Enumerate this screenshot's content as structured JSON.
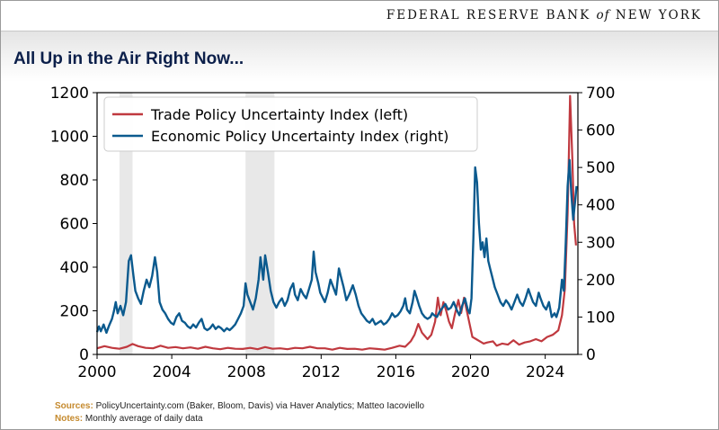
{
  "header": {
    "brand_main": "FEDERAL RESERVE BANK",
    "brand_of": "of",
    "brand_end": "NEW YORK",
    "title": "All Up in the Air Right Now..."
  },
  "footer": {
    "sources_label": "Sources:",
    "sources_text": "PolicyUncertainty.com (Baker, Bloom, Davis) via Haver Analytics; Matteo Iacoviello",
    "notes_label": "Notes:",
    "notes_text": "Monthly average of daily data"
  },
  "colors": {
    "trade": "#c0393f",
    "economic": "#0b5a8e",
    "recession": "#e8e8e8"
  },
  "chart_data": {
    "type": "line",
    "title": "All Up in the Air Right Now...",
    "x_ticks": [
      "2000",
      "2004",
      "2008",
      "2012",
      "2016",
      "2020",
      "2024"
    ],
    "x_tick_values": [
      2000,
      2004,
      2008,
      2012,
      2016,
      2020,
      2024
    ],
    "xlim": [
      2000,
      2025.75
    ],
    "y_left_ticks": [
      "0",
      "200",
      "400",
      "600",
      "800",
      "1000",
      "1200"
    ],
    "y_left_values": [
      0,
      200,
      400,
      600,
      800,
      1000,
      1200
    ],
    "ylim_left": [
      0,
      1200
    ],
    "y_right_ticks": [
      "0",
      "100",
      "200",
      "300",
      "400",
      "500",
      "600",
      "700"
    ],
    "y_right_values": [
      0,
      100,
      200,
      300,
      400,
      500,
      600,
      700
    ],
    "ylim_right": [
      0,
      700
    ],
    "legend_position": "top-left",
    "shaded_periods": [
      [
        2001.2,
        2001.9
      ],
      [
        2007.95,
        2009.5
      ]
    ],
    "series": [
      {
        "name": "Trade Policy Uncertainty Index (left)",
        "axis": "left",
        "color": "#c0393f",
        "points": [
          [
            2000.0,
            28
          ],
          [
            2000.4,
            38
          ],
          [
            2000.8,
            30
          ],
          [
            2001.2,
            26
          ],
          [
            2001.6,
            35
          ],
          [
            2001.9,
            48
          ],
          [
            2002.2,
            38
          ],
          [
            2002.6,
            30
          ],
          [
            2003.0,
            28
          ],
          [
            2003.4,
            40
          ],
          [
            2003.8,
            30
          ],
          [
            2004.2,
            34
          ],
          [
            2004.6,
            28
          ],
          [
            2005.0,
            32
          ],
          [
            2005.4,
            26
          ],
          [
            2005.8,
            35
          ],
          [
            2006.2,
            28
          ],
          [
            2006.6,
            24
          ],
          [
            2007.0,
            30
          ],
          [
            2007.4,
            26
          ],
          [
            2007.8,
            25
          ],
          [
            2008.2,
            30
          ],
          [
            2008.6,
            24
          ],
          [
            2009.0,
            34
          ],
          [
            2009.4,
            26
          ],
          [
            2009.8,
            28
          ],
          [
            2010.2,
            24
          ],
          [
            2010.6,
            30
          ],
          [
            2011.0,
            28
          ],
          [
            2011.4,
            35
          ],
          [
            2011.8,
            28
          ],
          [
            2012.2,
            28
          ],
          [
            2012.6,
            22
          ],
          [
            2013.0,
            30
          ],
          [
            2013.4,
            25
          ],
          [
            2013.8,
            26
          ],
          [
            2014.2,
            22
          ],
          [
            2014.6,
            28
          ],
          [
            2015.0,
            25
          ],
          [
            2015.4,
            22
          ],
          [
            2015.8,
            30
          ],
          [
            2016.2,
            40
          ],
          [
            2016.5,
            35
          ],
          [
            2016.8,
            60
          ],
          [
            2017.0,
            90
          ],
          [
            2017.2,
            140
          ],
          [
            2017.4,
            100
          ],
          [
            2017.7,
            70
          ],
          [
            2017.9,
            90
          ],
          [
            2018.1,
            150
          ],
          [
            2018.25,
            260
          ],
          [
            2018.4,
            180
          ],
          [
            2018.55,
            240
          ],
          [
            2018.7,
            200
          ],
          [
            2018.85,
            150
          ],
          [
            2019.0,
            120
          ],
          [
            2019.15,
            180
          ],
          [
            2019.35,
            250
          ],
          [
            2019.5,
            190
          ],
          [
            2019.65,
            260
          ],
          [
            2019.8,
            200
          ],
          [
            2019.95,
            140
          ],
          [
            2020.1,
            80
          ],
          [
            2020.3,
            70
          ],
          [
            2020.5,
            60
          ],
          [
            2020.7,
            50
          ],
          [
            2020.9,
            55
          ],
          [
            2021.2,
            60
          ],
          [
            2021.4,
            40
          ],
          [
            2021.7,
            50
          ],
          [
            2022.0,
            45
          ],
          [
            2022.3,
            65
          ],
          [
            2022.6,
            45
          ],
          [
            2022.9,
            55
          ],
          [
            2023.2,
            60
          ],
          [
            2023.5,
            70
          ],
          [
            2023.8,
            60
          ],
          [
            2024.1,
            80
          ],
          [
            2024.4,
            90
          ],
          [
            2024.7,
            110
          ],
          [
            2024.9,
            180
          ],
          [
            2025.05,
            300
          ],
          [
            2025.2,
            650
          ],
          [
            2025.33,
            1185
          ],
          [
            2025.45,
            900
          ],
          [
            2025.55,
            600
          ],
          [
            2025.65,
            500
          ]
        ]
      },
      {
        "name": "Economic Policy Uncertainty Index (right)",
        "axis": "right",
        "color": "#0b5a8e",
        "points": [
          [
            2000.0,
            60
          ],
          [
            2000.1,
            75
          ],
          [
            2000.2,
            62
          ],
          [
            2000.35,
            80
          ],
          [
            2000.5,
            58
          ],
          [
            2000.65,
            78
          ],
          [
            2000.8,
            95
          ],
          [
            2000.9,
            115
          ],
          [
            2001.0,
            140
          ],
          [
            2001.1,
            110
          ],
          [
            2001.25,
            130
          ],
          [
            2001.4,
            105
          ],
          [
            2001.55,
            140
          ],
          [
            2001.7,
            250
          ],
          [
            2001.82,
            265
          ],
          [
            2001.95,
            210
          ],
          [
            2002.05,
            170
          ],
          [
            2002.2,
            150
          ],
          [
            2002.35,
            135
          ],
          [
            2002.5,
            170
          ],
          [
            2002.65,
            200
          ],
          [
            2002.8,
            180
          ],
          [
            2002.95,
            210
          ],
          [
            2003.1,
            260
          ],
          [
            2003.22,
            220
          ],
          [
            2003.35,
            140
          ],
          [
            2003.5,
            120
          ],
          [
            2003.65,
            110
          ],
          [
            2003.8,
            95
          ],
          [
            2003.95,
            85
          ],
          [
            2004.1,
            80
          ],
          [
            2004.25,
            100
          ],
          [
            2004.4,
            110
          ],
          [
            2004.55,
            90
          ],
          [
            2004.7,
            85
          ],
          [
            2004.85,
            75
          ],
          [
            2005.0,
            70
          ],
          [
            2005.15,
            80
          ],
          [
            2005.3,
            72
          ],
          [
            2005.45,
            85
          ],
          [
            2005.6,
            95
          ],
          [
            2005.75,
            70
          ],
          [
            2005.9,
            65
          ],
          [
            2006.05,
            70
          ],
          [
            2006.2,
            80
          ],
          [
            2006.35,
            68
          ],
          [
            2006.5,
            75
          ],
          [
            2006.65,
            70
          ],
          [
            2006.8,
            62
          ],
          [
            2006.95,
            70
          ],
          [
            2007.1,
            65
          ],
          [
            2007.25,
            72
          ],
          [
            2007.4,
            80
          ],
          [
            2007.55,
            95
          ],
          [
            2007.7,
            110
          ],
          [
            2007.85,
            130
          ],
          [
            2007.95,
            190
          ],
          [
            2008.05,
            160
          ],
          [
            2008.2,
            140
          ],
          [
            2008.35,
            120
          ],
          [
            2008.5,
            150
          ],
          [
            2008.65,
            200
          ],
          [
            2008.75,
            260
          ],
          [
            2008.9,
            200
          ],
          [
            2009.0,
            265
          ],
          [
            2009.15,
            220
          ],
          [
            2009.3,
            170
          ],
          [
            2009.45,
            140
          ],
          [
            2009.6,
            125
          ],
          [
            2009.75,
            140
          ],
          [
            2009.9,
            150
          ],
          [
            2010.05,
            130
          ],
          [
            2010.2,
            145
          ],
          [
            2010.35,
            175
          ],
          [
            2010.5,
            190
          ],
          [
            2010.6,
            160
          ],
          [
            2010.75,
            145
          ],
          [
            2010.9,
            175
          ],
          [
            2011.05,
            160
          ],
          [
            2011.2,
            150
          ],
          [
            2011.35,
            175
          ],
          [
            2011.5,
            200
          ],
          [
            2011.6,
            275
          ],
          [
            2011.7,
            220
          ],
          [
            2011.85,
            190
          ],
          [
            2011.95,
            165
          ],
          [
            2012.1,
            150
          ],
          [
            2012.2,
            140
          ],
          [
            2012.35,
            165
          ],
          [
            2012.5,
            200
          ],
          [
            2012.65,
            180
          ],
          [
            2012.8,
            160
          ],
          [
            2012.95,
            230
          ],
          [
            2013.05,
            210
          ],
          [
            2013.2,
            180
          ],
          [
            2013.35,
            145
          ],
          [
            2013.5,
            160
          ],
          [
            2013.7,
            185
          ],
          [
            2013.85,
            160
          ],
          [
            2014.0,
            130
          ],
          [
            2014.15,
            110
          ],
          [
            2014.3,
            100
          ],
          [
            2014.45,
            90
          ],
          [
            2014.6,
            85
          ],
          [
            2014.75,
            95
          ],
          [
            2014.9,
            80
          ],
          [
            2015.05,
            85
          ],
          [
            2015.2,
            90
          ],
          [
            2015.35,
            80
          ],
          [
            2015.5,
            85
          ],
          [
            2015.65,
            95
          ],
          [
            2015.8,
            110
          ],
          [
            2015.95,
            100
          ],
          [
            2016.1,
            105
          ],
          [
            2016.25,
            115
          ],
          [
            2016.4,
            130
          ],
          [
            2016.5,
            150
          ],
          [
            2016.6,
            120
          ],
          [
            2016.75,
            110
          ],
          [
            2016.9,
            140
          ],
          [
            2017.0,
            170
          ],
          [
            2017.1,
            155
          ],
          [
            2017.25,
            130
          ],
          [
            2017.4,
            110
          ],
          [
            2017.55,
            100
          ],
          [
            2017.7,
            95
          ],
          [
            2017.85,
            100
          ],
          [
            2017.95,
            110
          ],
          [
            2018.05,
            105
          ],
          [
            2018.2,
            100
          ],
          [
            2018.35,
            115
          ],
          [
            2018.5,
            125
          ],
          [
            2018.65,
            135
          ],
          [
            2018.8,
            120
          ],
          [
            2018.95,
            125
          ],
          [
            2019.1,
            140
          ],
          [
            2019.25,
            120
          ],
          [
            2019.4,
            105
          ],
          [
            2019.55,
            130
          ],
          [
            2019.7,
            150
          ],
          [
            2019.85,
            120
          ],
          [
            2019.95,
            110
          ],
          [
            2020.05,
            150
          ],
          [
            2020.15,
            310
          ],
          [
            2020.25,
            500
          ],
          [
            2020.35,
            460
          ],
          [
            2020.45,
            350
          ],
          [
            2020.55,
            280
          ],
          [
            2020.65,
            300
          ],
          [
            2020.75,
            260
          ],
          [
            2020.85,
            310
          ],
          [
            2020.95,
            250
          ],
          [
            2021.05,
            230
          ],
          [
            2021.15,
            210
          ],
          [
            2021.3,
            180
          ],
          [
            2021.45,
            160
          ],
          [
            2021.6,
            140
          ],
          [
            2021.75,
            130
          ],
          [
            2021.9,
            145
          ],
          [
            2022.05,
            135
          ],
          [
            2022.2,
            120
          ],
          [
            2022.35,
            140
          ],
          [
            2022.5,
            160
          ],
          [
            2022.65,
            140
          ],
          [
            2022.8,
            130
          ],
          [
            2022.95,
            150
          ],
          [
            2023.1,
            175
          ],
          [
            2023.2,
            160
          ],
          [
            2023.35,
            140
          ],
          [
            2023.5,
            130
          ],
          [
            2023.65,
            165
          ],
          [
            2023.75,
            150
          ],
          [
            2023.9,
            130
          ],
          [
            2024.05,
            120
          ],
          [
            2024.2,
            140
          ],
          [
            2024.35,
            100
          ],
          [
            2024.5,
            110
          ],
          [
            2024.6,
            100
          ],
          [
            2024.75,
            125
          ],
          [
            2024.9,
            200
          ],
          [
            2025.0,
            170
          ],
          [
            2025.1,
            300
          ],
          [
            2025.2,
            450
          ],
          [
            2025.3,
            520
          ],
          [
            2025.4,
            430
          ],
          [
            2025.5,
            360
          ],
          [
            2025.6,
            410
          ],
          [
            2025.68,
            450
          ]
        ]
      }
    ]
  }
}
